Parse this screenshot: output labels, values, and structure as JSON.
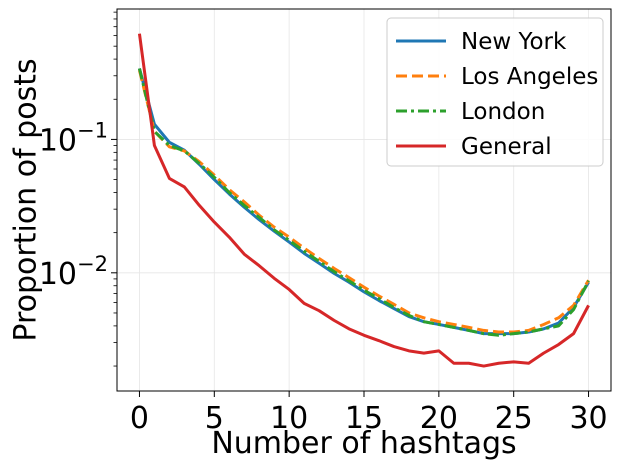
{
  "chart_data": {
    "type": "line",
    "xlabel": "Number of hashtags",
    "ylabel": "Proportion of posts",
    "xlim": [
      -1.5,
      31.5
    ],
    "ylim": [
      0.0013,
      0.95
    ],
    "yscale": "log",
    "grid": true,
    "legend_position": "top-right",
    "x_ticks": [
      0,
      5,
      10,
      15,
      20,
      25,
      30
    ],
    "y_ticks": [
      {
        "value": 0.01,
        "base": "10",
        "exp": "−2"
      },
      {
        "value": 0.1,
        "base": "10",
        "exp": "−1"
      }
    ],
    "x": [
      0,
      1,
      2,
      3,
      4,
      5,
      6,
      7,
      8,
      9,
      10,
      11,
      12,
      13,
      14,
      15,
      16,
      17,
      18,
      19,
      20,
      21,
      22,
      23,
      24,
      25,
      26,
      27,
      28,
      29,
      30
    ],
    "series": [
      {
        "name": "New York",
        "color": "#1f77b4",
        "dash": "solid",
        "values": [
          0.34,
          0.13,
          0.095,
          0.083,
          0.065,
          0.05,
          0.039,
          0.031,
          0.025,
          0.0205,
          0.017,
          0.014,
          0.0118,
          0.0099,
          0.0085,
          0.0072,
          0.0062,
          0.0054,
          0.0047,
          0.0043,
          0.0041,
          0.0039,
          0.0037,
          0.0035,
          0.0035,
          0.0035,
          0.0036,
          0.0038,
          0.0042,
          0.0055,
          0.0085
        ]
      },
      {
        "name": "Los Angeles",
        "color": "#ff7f0e",
        "dash": "dashed",
        "values": [
          0.33,
          0.115,
          0.088,
          0.082,
          0.068,
          0.054,
          0.042,
          0.034,
          0.027,
          0.022,
          0.0185,
          0.0153,
          0.0128,
          0.0108,
          0.0092,
          0.0078,
          0.0067,
          0.0058,
          0.005,
          0.0046,
          0.0043,
          0.0041,
          0.0039,
          0.0037,
          0.0036,
          0.0036,
          0.0037,
          0.0041,
          0.0046,
          0.0057,
          0.0088
        ]
      },
      {
        "name": "London",
        "color": "#2ca02c",
        "dash": "dashdot",
        "values": [
          0.34,
          0.115,
          0.09,
          0.082,
          0.066,
          0.052,
          0.04,
          0.032,
          0.026,
          0.021,
          0.0175,
          0.0145,
          0.0122,
          0.0102,
          0.0087,
          0.0074,
          0.0064,
          0.0055,
          0.0048,
          0.0043,
          0.0041,
          0.0039,
          0.0037,
          0.0035,
          0.0034,
          0.0035,
          0.0036,
          0.0038,
          0.004,
          0.0053,
          0.0087
        ]
      },
      {
        "name": "General",
        "color": "#d62728",
        "dash": "solid",
        "values": [
          0.62,
          0.09,
          0.051,
          0.044,
          0.032,
          0.024,
          0.0185,
          0.0138,
          0.0113,
          0.0091,
          0.0075,
          0.0059,
          0.0052,
          0.0044,
          0.0038,
          0.0034,
          0.0031,
          0.0028,
          0.0026,
          0.0025,
          0.0026,
          0.0021,
          0.0021,
          0.002,
          0.0021,
          0.00215,
          0.0021,
          0.0025,
          0.0029,
          0.0035,
          0.0057
        ]
      }
    ]
  }
}
